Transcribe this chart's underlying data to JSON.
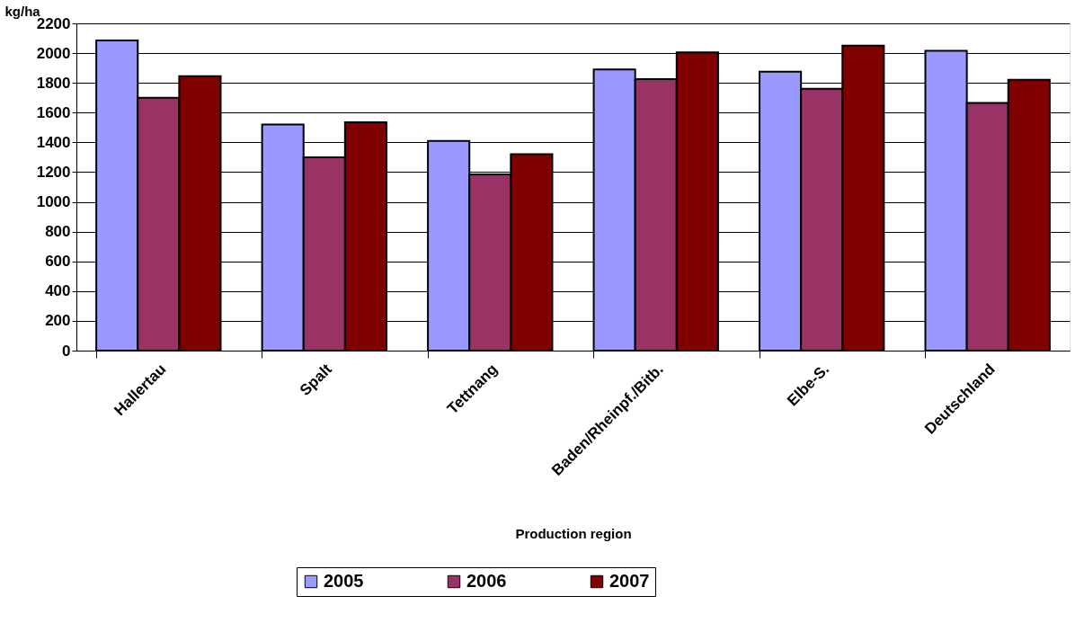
{
  "chart_data": {
    "type": "bar",
    "xlabel": "Production region",
    "ylabel": "kg/ha",
    "categories": [
      "Hallertau",
      "Spalt",
      "Tettnang",
      "Baden/Rheinpf./Bitb.",
      "Elbe-S.",
      "Deutschland"
    ],
    "series": [
      {
        "name": "2005",
        "color": "#9999ff",
        "values": [
          2085,
          1520,
          1410,
          1890,
          1875,
          2015
        ]
      },
      {
        "name": "2006",
        "color": "#993366",
        "values": [
          1700,
          1300,
          1185,
          1825,
          1760,
          1665
        ]
      },
      {
        "name": "2007",
        "color": "#800000",
        "values": [
          1845,
          1535,
          1320,
          2005,
          2050,
          1820
        ]
      }
    ],
    "ylim": [
      0,
      2200
    ],
    "yticks": [
      0,
      200,
      400,
      600,
      800,
      1000,
      1200,
      1400,
      1600,
      1800,
      2000,
      2200
    ],
    "grid": "y",
    "legend": "bottom"
  }
}
